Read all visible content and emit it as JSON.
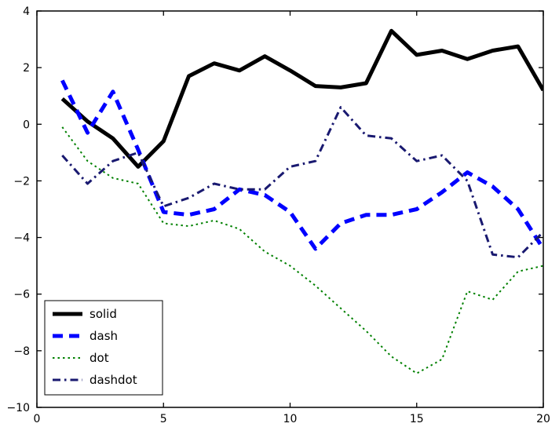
{
  "chart_data": {
    "type": "line",
    "x": [
      1,
      2,
      3,
      4,
      5,
      6,
      7,
      8,
      9,
      10,
      11,
      12,
      13,
      14,
      15,
      16,
      17,
      18,
      19,
      20
    ],
    "series": [
      {
        "name": "solid",
        "color": "#000000",
        "style": "solid",
        "width": 5,
        "values": [
          0.9,
          0.1,
          -0.5,
          -1.5,
          -0.6,
          1.7,
          2.15,
          1.9,
          2.4,
          1.9,
          1.35,
          1.3,
          1.45,
          3.3,
          2.45,
          2.6,
          2.3,
          2.6,
          2.75,
          1.2
        ]
      },
      {
        "name": "dash",
        "color": "#0000ff",
        "style": "dash",
        "width": 5,
        "values": [
          1.55,
          -0.3,
          1.15,
          -0.9,
          -3.1,
          -3.2,
          -3.0,
          -2.3,
          -2.5,
          -3.1,
          -4.4,
          -3.5,
          -3.2,
          -3.2,
          -3.0,
          -2.4,
          -1.7,
          -2.2,
          -3.0,
          -4.4
        ]
      },
      {
        "name": "dot",
        "color": "#008000",
        "style": "dot",
        "width": 2,
        "values": [
          -0.1,
          -1.3,
          -1.9,
          -2.1,
          -3.5,
          -3.6,
          -3.4,
          -3.7,
          -4.5,
          -5.0,
          -5.7,
          -6.5,
          -7.3,
          -8.2,
          -8.8,
          -8.3,
          -5.9,
          -6.2,
          -5.2,
          -5.0
        ]
      },
      {
        "name": "dashdot",
        "color": "#191970",
        "style": "dashdot",
        "width": 3,
        "values": [
          -1.1,
          -2.1,
          -1.3,
          -1.0,
          -2.9,
          -2.6,
          -2.1,
          -2.3,
          -2.3,
          -1.5,
          -1.3,
          0.6,
          -0.4,
          -0.5,
          -1.3,
          -1.1,
          -2.0,
          -4.6,
          -4.7,
          -3.8
        ]
      }
    ],
    "title": "",
    "xlabel": "",
    "ylabel": "",
    "xlim": [
      0,
      20
    ],
    "ylim": [
      -10,
      4
    ],
    "xticks": [
      0,
      5,
      10,
      15,
      20
    ],
    "xtick_labels": [
      "0",
      "5",
      "10",
      "15",
      "20"
    ],
    "yticks": [
      4,
      2,
      0,
      -2,
      -4,
      -6,
      -8,
      -10
    ],
    "ytick_labels": [
      "4",
      "2",
      "0",
      "−2",
      "−4",
      "−6",
      "−8",
      "−10"
    ],
    "grid": false,
    "legend": {
      "position": "lower left",
      "entries": [
        "solid",
        "dash",
        "dot",
        "dashdot"
      ]
    }
  }
}
